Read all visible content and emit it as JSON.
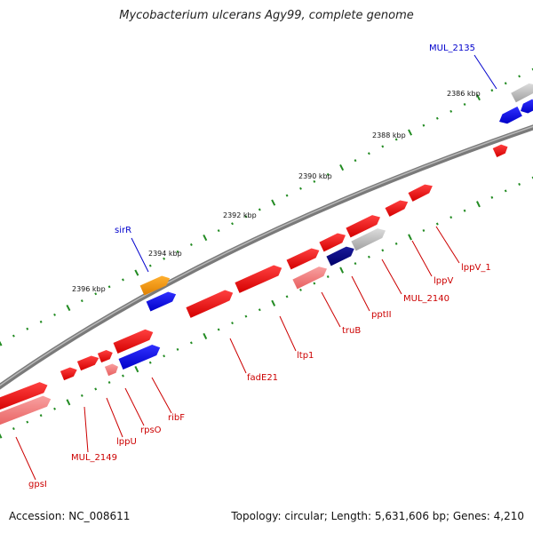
{
  "title": "Mycobacterium ulcerans Agy99, complete genome",
  "footer": {
    "accession": "Accession: NC_008611",
    "summary": "Topology: circular; Length: 5,631,606 bp; Genes: 4,210"
  },
  "colors": {
    "backbone": "#808080",
    "gene_red": "#ff0000",
    "gene_pink": "#f07878",
    "gene_blue": "#0000ff",
    "gene_navy": "#00008b",
    "gene_orange": "#ff9900",
    "gene_gray": "#b0b0b0",
    "tick": "#228b22",
    "label_red": "#cc0000",
    "label_blue": "#0000cc"
  },
  "scale_labels": [
    {
      "label": "2386 kbp"
    },
    {
      "label": "2388 kbp"
    },
    {
      "label": "2390 kbp"
    },
    {
      "label": "2392 kbp"
    },
    {
      "label": "2394 kbp"
    },
    {
      "label": "2396 kbp"
    }
  ],
  "gene_labels": [
    {
      "label": "MUL_2135",
      "color": "blue"
    },
    {
      "label": "sirR",
      "color": "blue"
    },
    {
      "label": "lppV_1",
      "color": "red"
    },
    {
      "label": "lppV",
      "color": "red"
    },
    {
      "label": "MUL_2140",
      "color": "red"
    },
    {
      "label": "pptII",
      "color": "red"
    },
    {
      "label": "truB",
      "color": "red"
    },
    {
      "label": "ltp1",
      "color": "red"
    },
    {
      "label": "fadE21",
      "color": "red"
    },
    {
      "label": "ribF",
      "color": "red"
    },
    {
      "label": "rpsO",
      "color": "red"
    },
    {
      "label": "lppU",
      "color": "red"
    },
    {
      "label": "MUL_2149",
      "color": "red"
    },
    {
      "label": "gpsI",
      "color": "red"
    }
  ]
}
